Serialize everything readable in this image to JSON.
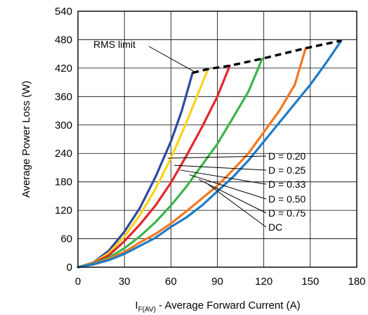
{
  "chart_data": {
    "type": "line",
    "title": "",
    "xlabel": {
      "main": "I",
      "sub": "F(AV)",
      "rest": " - Average Forward Current (A)"
    },
    "ylabel": "Average Power Loss (W)",
    "xlim": [
      0,
      180
    ],
    "ylim": [
      0,
      540
    ],
    "x_ticks": [
      0,
      30,
      60,
      90,
      120,
      150,
      180
    ],
    "y_ticks": [
      0,
      60,
      120,
      180,
      240,
      300,
      360,
      420,
      480,
      540
    ],
    "grid": true,
    "series": [
      {
        "name": "D = 0.20",
        "color": "#2e4a9e",
        "points": [
          [
            0,
            0
          ],
          [
            10,
            10
          ],
          [
            20,
            35
          ],
          [
            30,
            75
          ],
          [
            40,
            125
          ],
          [
            50,
            190
          ],
          [
            60,
            265
          ],
          [
            67,
            330
          ],
          [
            74,
            410
          ]
        ]
      },
      {
        "name": "D = 0.25",
        "color": "#ffd21a",
        "points": [
          [
            0,
            0
          ],
          [
            10,
            9
          ],
          [
            20,
            30
          ],
          [
            30,
            65
          ],
          [
            40,
            110
          ],
          [
            50,
            165
          ],
          [
            60,
            230
          ],
          [
            70,
            305
          ],
          [
            78,
            370
          ],
          [
            84,
            418
          ]
        ]
      },
      {
        "name": "D = 0.33",
        "color": "#e3262e",
        "points": [
          [
            0,
            0
          ],
          [
            10,
            8
          ],
          [
            20,
            25
          ],
          [
            30,
            55
          ],
          [
            40,
            90
          ],
          [
            50,
            130
          ],
          [
            60,
            178
          ],
          [
            70,
            235
          ],
          [
            80,
            295
          ],
          [
            90,
            360
          ],
          [
            98,
            425
          ]
        ]
      },
      {
        "name": "D = 0.50",
        "color": "#3cb44b",
        "points": [
          [
            0,
            0
          ],
          [
            10,
            7
          ],
          [
            20,
            20
          ],
          [
            30,
            40
          ],
          [
            40,
            65
          ],
          [
            50,
            95
          ],
          [
            60,
            130
          ],
          [
            70,
            170
          ],
          [
            80,
            215
          ],
          [
            90,
            260
          ],
          [
            100,
            315
          ],
          [
            110,
            370
          ],
          [
            119,
            440
          ]
        ]
      },
      {
        "name": "D = 0.75",
        "color": "#f37721",
        "points": [
          [
            0,
            0
          ],
          [
            10,
            6
          ],
          [
            20,
            17
          ],
          [
            30,
            32
          ],
          [
            40,
            52
          ],
          [
            50,
            70
          ],
          [
            60,
            92
          ],
          [
            70,
            118
          ],
          [
            80,
            145
          ],
          [
            90,
            172
          ],
          [
            100,
            205
          ],
          [
            110,
            240
          ],
          [
            120,
            285
          ],
          [
            130,
            330
          ],
          [
            140,
            385
          ],
          [
            147,
            462
          ]
        ]
      },
      {
        "name": "DC",
        "color": "#1f7bc6",
        "points": [
          [
            0,
            0
          ],
          [
            10,
            6
          ],
          [
            20,
            15
          ],
          [
            30,
            28
          ],
          [
            40,
            45
          ],
          [
            50,
            62
          ],
          [
            60,
            85
          ],
          [
            70,
            105
          ],
          [
            80,
            130
          ],
          [
            90,
            160
          ],
          [
            100,
            190
          ],
          [
            110,
            225
          ],
          [
            120,
            265
          ],
          [
            130,
            305
          ],
          [
            140,
            345
          ],
          [
            150,
            385
          ],
          [
            160,
            430
          ],
          [
            170,
            478
          ]
        ]
      }
    ],
    "rms_limit": {
      "label": "RMS limit",
      "points": [
        [
          74,
          410
        ],
        [
          84,
          418
        ],
        [
          98,
          425
        ],
        [
          119,
          440
        ],
        [
          147,
          462
        ],
        [
          170,
          478
        ]
      ]
    },
    "annotation_labels": [
      "D = 0.20",
      "D = 0.25",
      "D = 0.33",
      "D = 0.50",
      "D = 0.75",
      "DC"
    ]
  }
}
